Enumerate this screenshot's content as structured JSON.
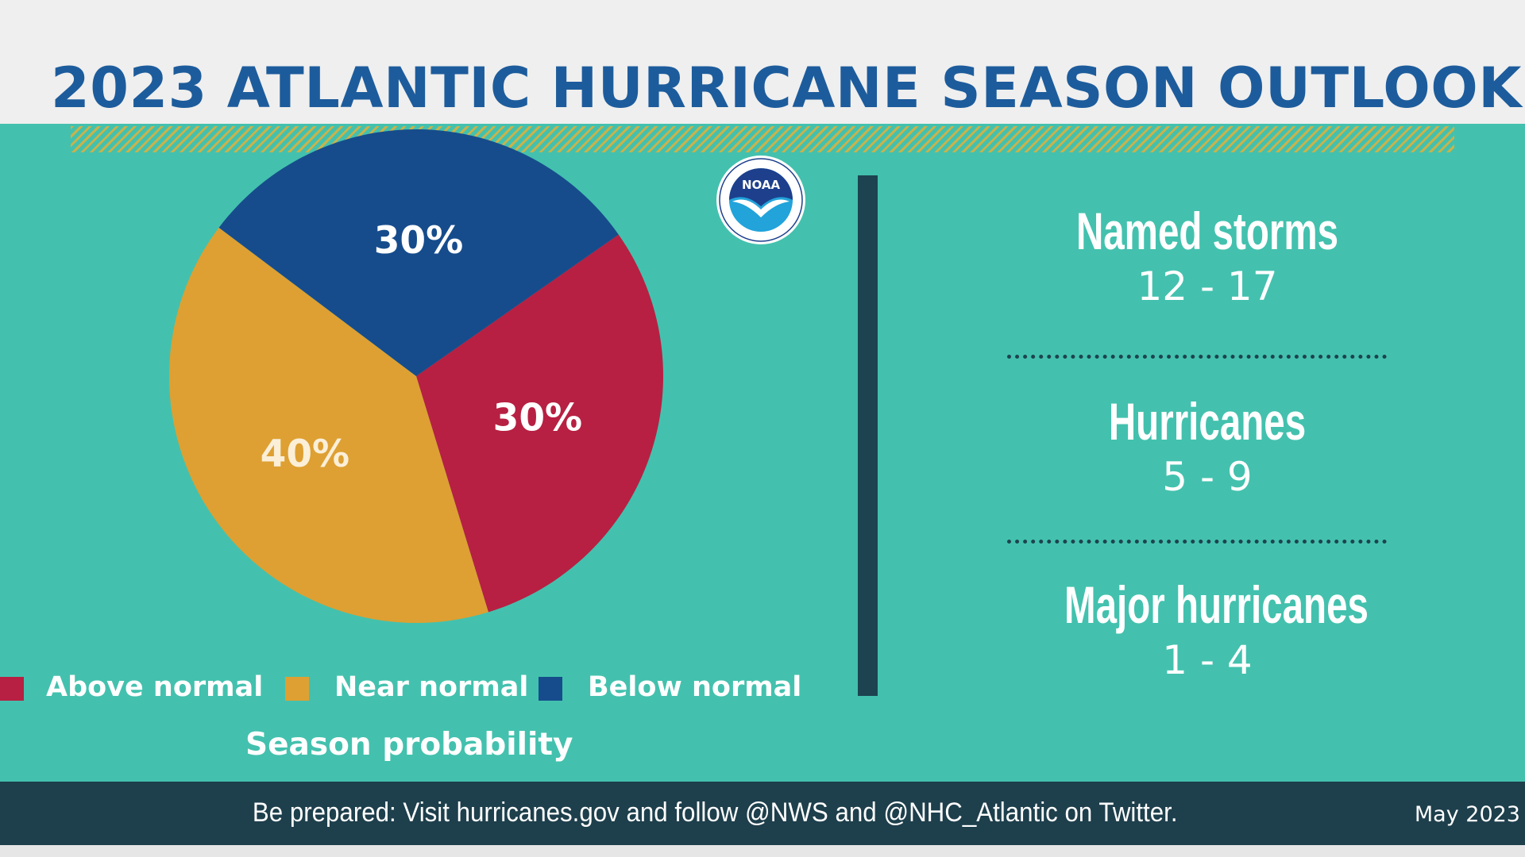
{
  "header": {
    "title": "2023 ATLANTIC HURRICANE SEASON OUTLOOK"
  },
  "chart_data": {
    "type": "pie",
    "title": "Season probability",
    "categories": [
      "Above normal",
      "Near normal",
      "Below normal"
    ],
    "values": [
      30,
      40,
      30
    ],
    "value_labels": [
      "30%",
      "40%",
      "30%"
    ],
    "colors": [
      "#b72042",
      "#dea032",
      "#164c8c"
    ],
    "legend_position": "bottom"
  },
  "legend": {
    "items": [
      {
        "label": "Above normal",
        "color": "#b72042"
      },
      {
        "label": "Near normal",
        "color": "#dea032"
      },
      {
        "label": "Below normal",
        "color": "#164c8c"
      }
    ]
  },
  "logo": {
    "text": "NOAA",
    "icon": "noaa-logo-icon"
  },
  "stats": [
    {
      "label": "Named storms",
      "value": "12 - 17"
    },
    {
      "label": "Hurricanes",
      "value": "5 - 9"
    },
    {
      "label": "Major hurricanes",
      "value": "1 - 4"
    }
  ],
  "footer": {
    "text": "Be prepared: Visit hurricanes.gov and follow @NWS and @NHC_Atlantic on Twitter.",
    "date": "May 2023"
  },
  "colors": {
    "teal": "#43c1ae",
    "dark": "#1e3f4c",
    "title_blue": "#1d5c9c"
  }
}
